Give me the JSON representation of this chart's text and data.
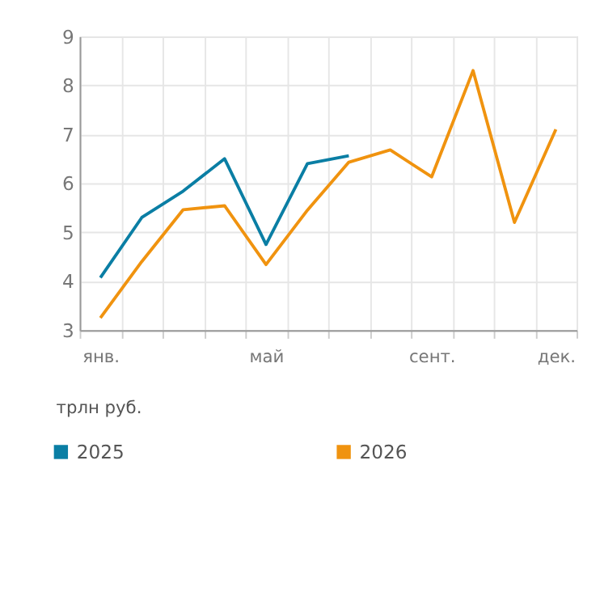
{
  "chart_data": {
    "type": "line",
    "categories": [
      "янв.",
      null,
      null,
      null,
      "май",
      null,
      null,
      null,
      "сент.",
      null,
      null,
      "дек."
    ],
    "ylabel": "трлн руб.",
    "ylim": [
      3,
      9
    ],
    "yticks": [
      3,
      4,
      5,
      6,
      7,
      8,
      9
    ],
    "grid": true,
    "legend": "bottom left",
    "marker": "none",
    "line_style": "solid",
    "series": [
      {
        "name": "2025",
        "color": "#0a7ea4",
        "values": [
          4.07,
          5.3,
          5.84,
          6.5,
          4.75,
          6.4,
          6.56,
          null,
          null,
          null,
          null,
          null
        ]
      },
      {
        "name": "2026",
        "color": "#f0930f",
        "values": [
          3.25,
          4.4,
          5.46,
          5.54,
          4.34,
          5.45,
          6.43,
          6.68,
          6.13,
          8.3,
          5.2,
          7.1
        ]
      }
    ]
  }
}
